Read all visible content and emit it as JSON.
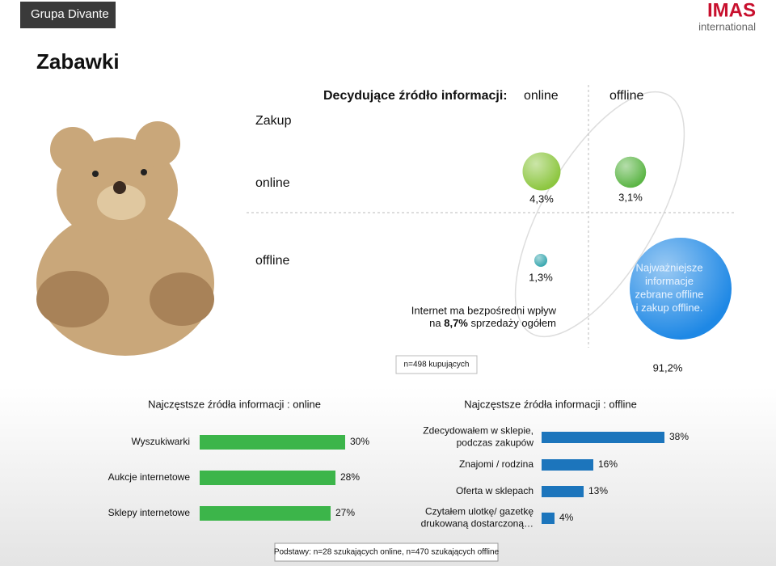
{
  "brand": "Grupa Divante",
  "logo": {
    "name": "IMAS",
    "sub": "international"
  },
  "title": "Zabawki",
  "matrix": {
    "heading": "Decydujące źródło informacji:",
    "columns": [
      "online",
      "offline"
    ],
    "row_heading": "Zakup",
    "rows": [
      "online",
      "offline"
    ],
    "cells": [
      {
        "row": 0,
        "col": 0,
        "value": 4.3,
        "value_label": "4,3%",
        "color": "#8cc63f"
      },
      {
        "row": 0,
        "col": 1,
        "value": 3.1,
        "value_label": "3,1%",
        "color": "#5bb545"
      },
      {
        "row": 1,
        "col": 0,
        "value": 1.3,
        "value_label": "1,3%",
        "color": "#3aa8b0"
      },
      {
        "row": 1,
        "col": 1,
        "value": 91.2,
        "value_label": "91,2%",
        "color": "#1e88e5"
      }
    ],
    "bubble_text": [
      "Najważniejsze",
      "informacje",
      "zebrane offline",
      "i zakup offline."
    ],
    "note": {
      "line1": "Internet ma bezpośredni wpływ",
      "pre": "na",
      "highlight": "8,7%",
      "post": "sprzedaży ogółem"
    },
    "sample": "n=498 kupujących"
  },
  "chart_data": [
    {
      "type": "bar",
      "orientation": "horizontal",
      "title": "Najczęstsze źródła informacji : online",
      "color": "#3cb54a",
      "categories": [
        [
          "Wyszukiwarki"
        ],
        [
          "Aukcje internetowe"
        ],
        [
          "Sklepy internetowe"
        ]
      ],
      "values": [
        30,
        28,
        27
      ],
      "value_labels": [
        "30%",
        "28%",
        "27%"
      ]
    },
    {
      "type": "bar",
      "orientation": "horizontal",
      "title": "Najczęstsze źródła informacji : offline",
      "color": "#1c75bc",
      "categories": [
        [
          "Zdecydowałem w sklepie,",
          "podczas zakupów"
        ],
        [
          "Znajomi / rodzina"
        ],
        [
          "Oferta w sklepach"
        ],
        [
          "Czytałem ulotkę/ gazetkę",
          "drukowaną dostarczoną…"
        ]
      ],
      "values": [
        38,
        16,
        13,
        4
      ],
      "value_labels": [
        "38%",
        "16%",
        "13%",
        "4%"
      ]
    }
  ],
  "footnote": "Podstawy: n=28 szukających online, n=470 szukających offline"
}
